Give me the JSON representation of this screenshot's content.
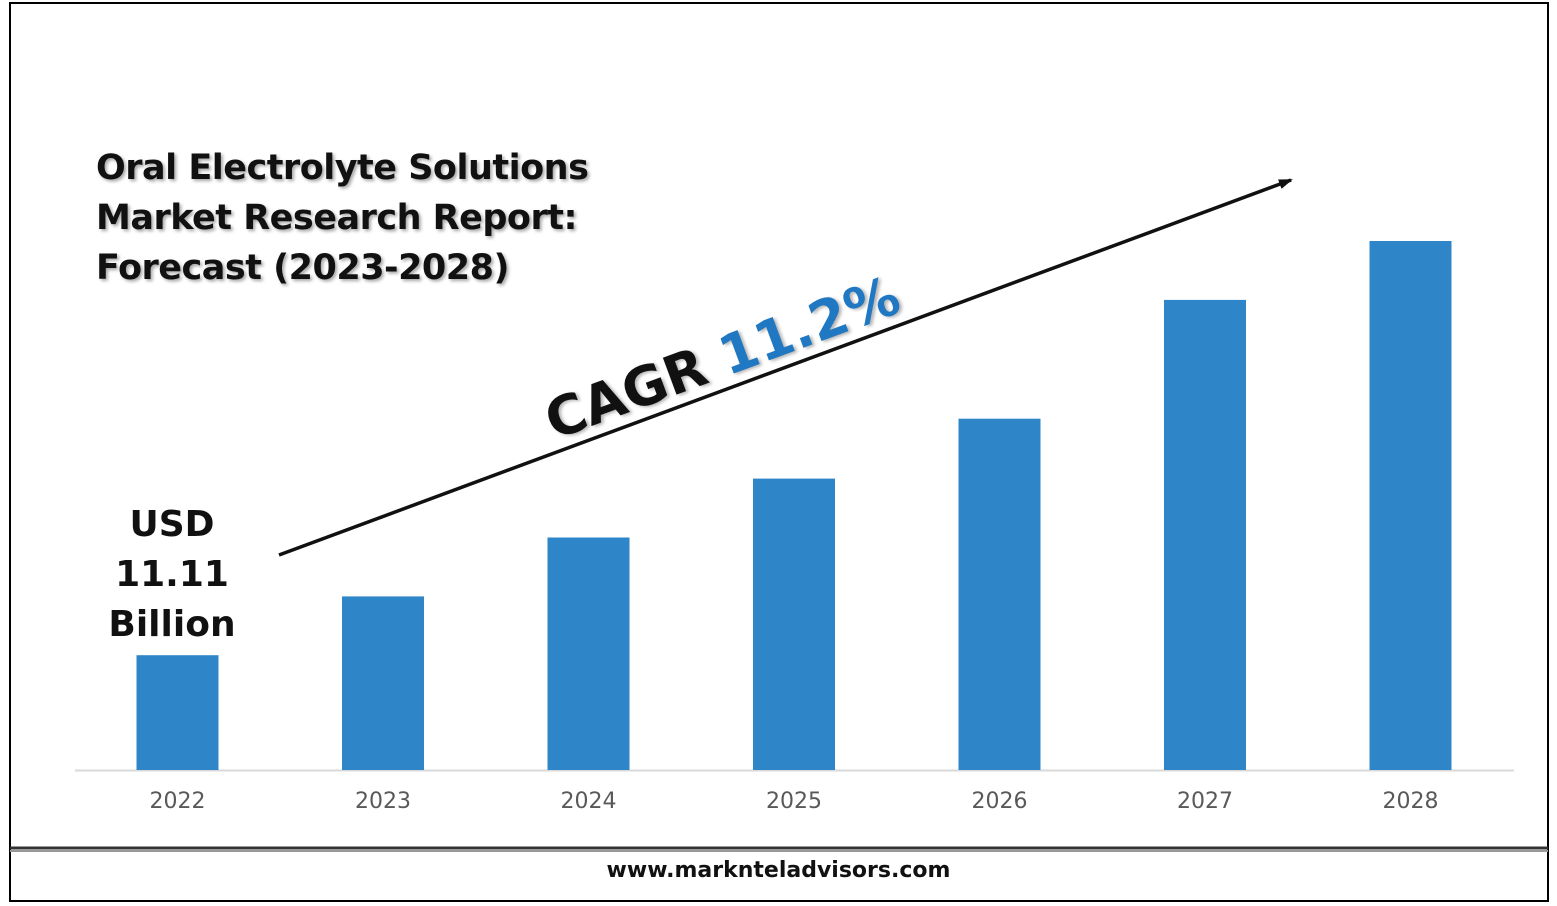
{
  "title": {
    "line1": "Oral Electrolyte Solutions",
    "line2": "Market Research Report:",
    "line3": "Forecast (2023-2028)"
  },
  "start_value": {
    "line1": "USD",
    "line2": "11.11",
    "line3": "Billion"
  },
  "cagr": {
    "label": "CAGR",
    "value": "11.2%"
  },
  "footer": {
    "url": "www.marknteladvisors.com"
  },
  "colors": {
    "bar": "#2E86C8",
    "cagr_value": "#1F78C1",
    "text": "#111111",
    "axis": "#D9D9D9"
  },
  "chart_data": {
    "type": "bar",
    "categories": [
      "2022",
      "2023",
      "2024",
      "2025",
      "2026",
      "2027",
      "2028"
    ],
    "values": [
      11.11,
      16.8,
      22.5,
      28.2,
      34.0,
      45.5,
      51.2
    ],
    "ylim": [
      0,
      51.2
    ],
    "grid": false,
    "legend": "none"
  }
}
